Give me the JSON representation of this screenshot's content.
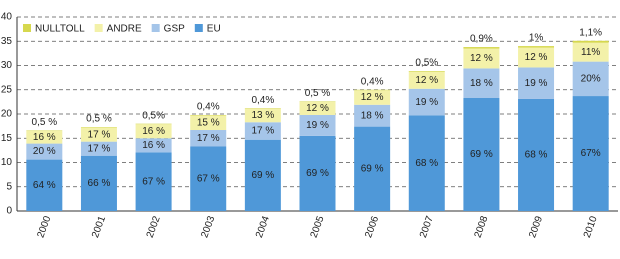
{
  "chart_data": {
    "type": "stacked_bar",
    "categories": [
      "2000",
      "2001",
      "2002",
      "2003",
      "2004",
      "2005",
      "2006",
      "2007",
      "2008",
      "2009",
      "2010"
    ],
    "series": [
      {
        "name": "NULLTOLL",
        "color": "#d6d84e",
        "values": [
          0.1,
          0.1,
          0.1,
          0.1,
          0.1,
          0.1,
          0.1,
          0.15,
          0.3,
          0.3,
          0.4
        ],
        "share_labels": [
          "0,5 %",
          "0,5 %",
          "0,5%",
          "0,4%",
          "0,4%",
          "0,5 %",
          "0,4%",
          "0,5%",
          "0,9%",
          "1%",
          "1,1%"
        ]
      },
      {
        "name": "ANDRE",
        "color": "#f3f1a9",
        "values": [
          2.6,
          2.9,
          2.9,
          3.0,
          2.8,
          2.7,
          3.0,
          3.5,
          4.1,
          4.1,
          3.9
        ],
        "share_labels": [
          "16 %",
          "17 %",
          "16 %",
          "15 %",
          "13 %",
          "12 %",
          "12 %",
          "12 %",
          "12 %",
          "12 %",
          "11%"
        ]
      },
      {
        "name": "GSP",
        "color": "#a5c5e9",
        "values": [
          3.3,
          2.9,
          2.9,
          3.4,
          3.6,
          4.3,
          4.5,
          5.5,
          6.1,
          6.5,
          7.1
        ],
        "share_labels": [
          "20 %",
          "17 %",
          "16 %",
          "17 %",
          "17 %",
          "19 %",
          "18 %",
          "19 %",
          "18 %",
          "19 %",
          "20%"
        ]
      },
      {
        "name": "EU",
        "color": "#4f98d8",
        "values": [
          10.6,
          11.4,
          12.1,
          13.3,
          14.7,
          15.5,
          17.4,
          19.7,
          23.3,
          23.1,
          23.7
        ],
        "share_labels": [
          "64 %",
          "66 %",
          "67 %",
          "67 %",
          "69 %",
          "69 %",
          "69 %",
          "68 %",
          "69 %",
          "68 %",
          "67%"
        ]
      }
    ],
    "ylim": [
      0,
      40
    ],
    "yticks": [
      0,
      5,
      10,
      15,
      20,
      25,
      30,
      35,
      40
    ],
    "grid": true,
    "legend": "top-left"
  }
}
